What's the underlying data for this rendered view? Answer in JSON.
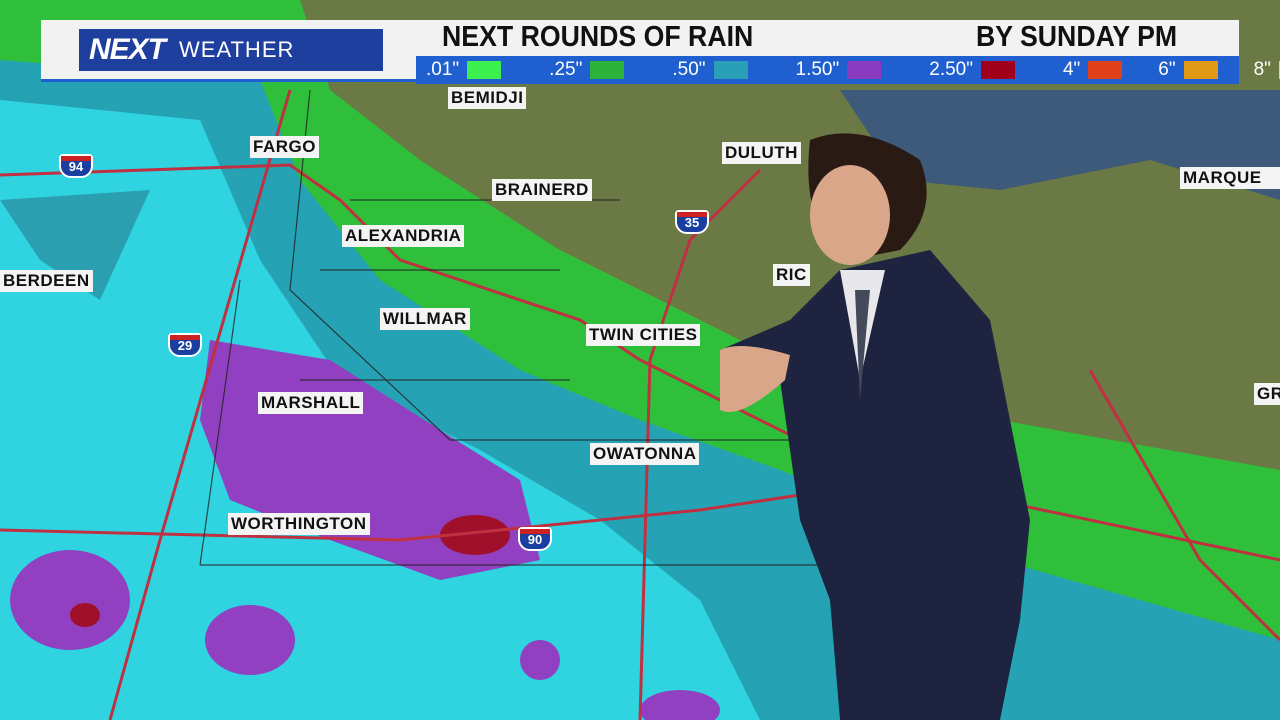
{
  "header": {
    "logo_brand": "NEXT",
    "logo_sub": "WEATHER",
    "title": "NEXT ROUNDS OF RAIN",
    "subtitle": "BY SUNDAY PM"
  },
  "legend": [
    {
      "label": ".01\"",
      "color": "#3cf050"
    },
    {
      "label": ".25\"",
      "color": "#2eb33a"
    },
    {
      "label": ".50\"",
      "color": "#2aa0b8"
    },
    {
      "label": "1.50\"",
      "color": "#8a3cc0"
    },
    {
      "label": "2.50\"",
      "color": "#a0001c"
    },
    {
      "label": "4\"",
      "color": "#e0401a"
    },
    {
      "label": "6\"",
      "color": "#e09a18"
    },
    {
      "label": "8\"",
      "color": "#e8e81a"
    }
  ],
  "cities": [
    "BEMIDJI",
    "FARGO",
    "DULUTH",
    "BRAINERD",
    "MARQUE",
    "ALEXANDRIA",
    "BERDEEN",
    "RIC",
    "WILLMAR",
    "TWIN CITIES",
    "MARSHALL",
    "OWATONNA",
    "GR",
    "WORTHINGTON"
  ],
  "interstates": [
    "94",
    "35",
    "29",
    "90"
  ]
}
